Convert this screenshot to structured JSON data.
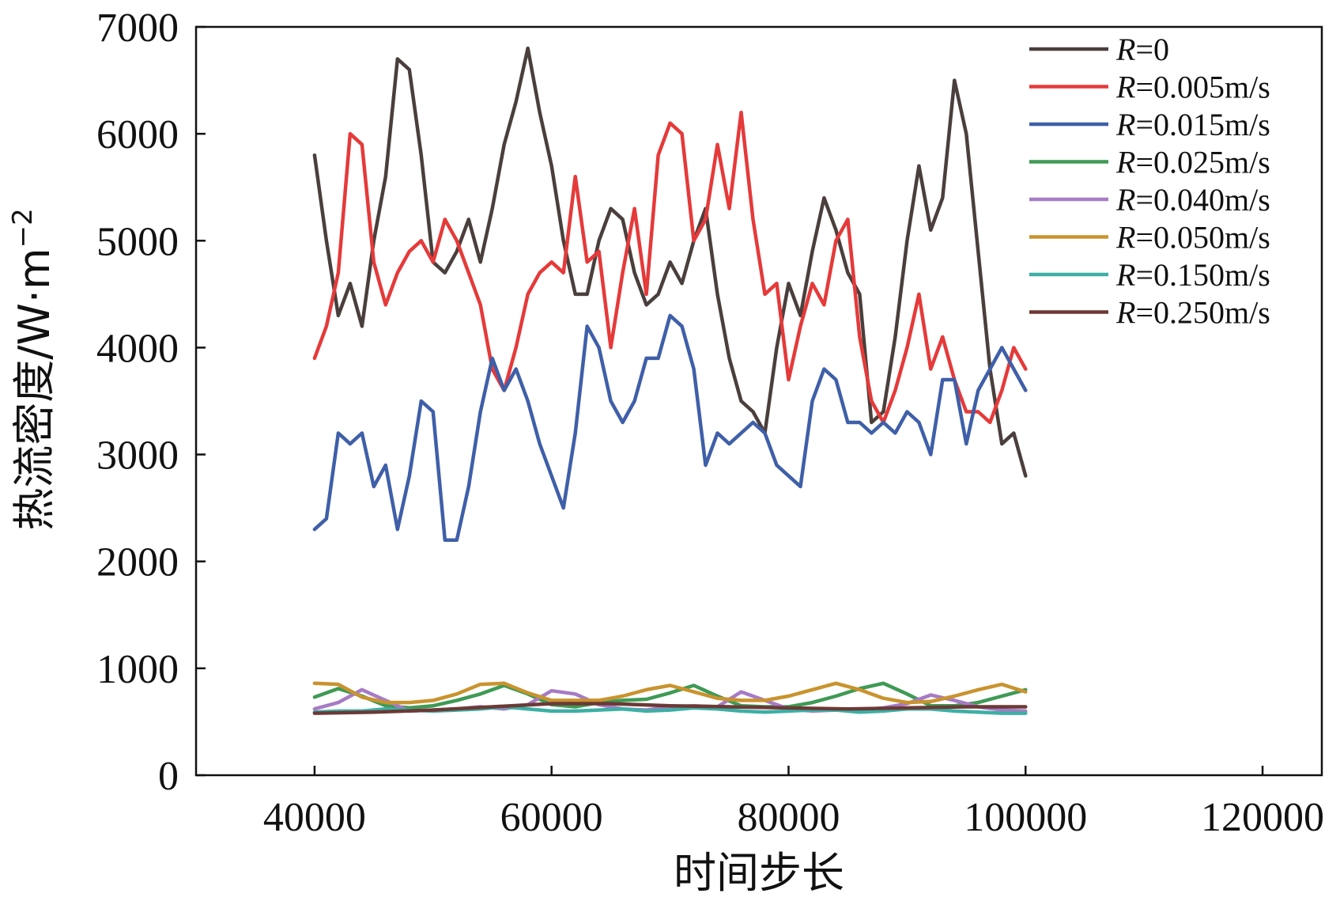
{
  "chart_data": {
    "type": "line",
    "xlabel": "时间步长",
    "ylabel": "热流密度/W·m",
    "ylabel_sup": "−2",
    "xlim": [
      30000,
      125000
    ],
    "ylim": [
      0,
      7000
    ],
    "xticks": [
      40000,
      60000,
      80000,
      100000,
      120000
    ],
    "yticks": [
      0,
      1000,
      2000,
      3000,
      4000,
      5000,
      6000,
      7000
    ],
    "legend_position": "top-right",
    "grid": false,
    "series": [
      {
        "name": "R=0",
        "label_italic": "R",
        "label_rest": "=0",
        "color": "#4a3f3c",
        "x": [
          40000,
          41000,
          42000,
          43000,
          44000,
          45000,
          46000,
          47000,
          48000,
          49000,
          50000,
          51000,
          52000,
          53000,
          54000,
          55000,
          56000,
          57000,
          58000,
          59000,
          60000,
          61000,
          62000,
          63000,
          64000,
          65000,
          66000,
          67000,
          68000,
          69000,
          70000,
          71000,
          72000,
          73000,
          74000,
          75000,
          76000,
          77000,
          78000,
          79000,
          80000,
          81000,
          82000,
          83000,
          84000,
          85000,
          86000,
          87000,
          88000,
          89000,
          90000,
          91000,
          92000,
          93000,
          94000,
          95000,
          96000,
          97000,
          98000,
          99000,
          100000
        ],
        "y": [
          5800,
          5000,
          4300,
          4600,
          4200,
          5000,
          5600,
          6700,
          6600,
          5800,
          4800,
          4700,
          4900,
          5200,
          4800,
          5300,
          5900,
          6300,
          6800,
          6200,
          5700,
          5000,
          4500,
          4500,
          5000,
          5300,
          5200,
          4700,
          4400,
          4500,
          4800,
          4600,
          5000,
          5300,
          4500,
          3900,
          3500,
          3400,
          3200,
          4000,
          4600,
          4300,
          4900,
          5400,
          5100,
          4700,
          4500,
          3300,
          3400,
          4100,
          5000,
          5700,
          5100,
          5400,
          6500,
          6000,
          4900,
          3800,
          3100,
          3200,
          2800
        ]
      },
      {
        "name": "R=0.005m/s",
        "label_italic": "R",
        "label_rest": "=0.005m/s",
        "color": "#e53a3a",
        "x": [
          40000,
          41000,
          42000,
          43000,
          44000,
          45000,
          46000,
          47000,
          48000,
          49000,
          50000,
          51000,
          52000,
          53000,
          54000,
          55000,
          56000,
          57000,
          58000,
          59000,
          60000,
          61000,
          62000,
          63000,
          64000,
          65000,
          66000,
          67000,
          68000,
          69000,
          70000,
          71000,
          72000,
          73000,
          74000,
          75000,
          76000,
          77000,
          78000,
          79000,
          80000,
          81000,
          82000,
          83000,
          84000,
          85000,
          86000,
          87000,
          88000,
          89000,
          90000,
          91000,
          92000,
          93000,
          94000,
          95000,
          96000,
          97000,
          98000,
          99000,
          100000
        ],
        "y": [
          3900,
          4200,
          4700,
          6000,
          5900,
          4800,
          4400,
          4700,
          4900,
          5000,
          4800,
          5200,
          5000,
          4700,
          4400,
          3800,
          3600,
          4000,
          4500,
          4700,
          4800,
          4700,
          5600,
          4800,
          4900,
          4000,
          4700,
          5300,
          4500,
          5800,
          6100,
          6000,
          5000,
          5200,
          5900,
          5300,
          6200,
          5200,
          4500,
          4600,
          3700,
          4200,
          4600,
          4400,
          5000,
          5200,
          4100,
          3500,
          3300,
          3600,
          4000,
          4500,
          3800,
          4100,
          3700,
          3400,
          3400,
          3300,
          3600,
          4000,
          3800
        ]
      },
      {
        "name": "R=0.015m/s",
        "label_italic": "R",
        "label_rest": "=0.015m/s",
        "color": "#3f5fa8",
        "x": [
          40000,
          41000,
          42000,
          43000,
          44000,
          45000,
          46000,
          47000,
          48000,
          49000,
          50000,
          51000,
          52000,
          53000,
          54000,
          55000,
          56000,
          57000,
          58000,
          59000,
          60000,
          61000,
          62000,
          63000,
          64000,
          65000,
          66000,
          67000,
          68000,
          69000,
          70000,
          71000,
          72000,
          73000,
          74000,
          75000,
          76000,
          77000,
          78000,
          79000,
          80000,
          81000,
          82000,
          83000,
          84000,
          85000,
          86000,
          87000,
          88000,
          89000,
          90000,
          91000,
          92000,
          93000,
          94000,
          95000,
          96000,
          97000,
          98000,
          99000,
          100000
        ],
        "y": [
          2300,
          2400,
          3200,
          3100,
          3200,
          2700,
          2900,
          2300,
          2800,
          3500,
          3400,
          2200,
          2200,
          2700,
          3400,
          3900,
          3600,
          3800,
          3500,
          3100,
          2800,
          2500,
          3200,
          4200,
          4000,
          3500,
          3300,
          3500,
          3900,
          3900,
          4300,
          4200,
          3800,
          2900,
          3200,
          3100,
          3200,
          3300,
          3200,
          2900,
          2800,
          2700,
          3500,
          3800,
          3700,
          3300,
          3300,
          3200,
          3300,
          3200,
          3400,
          3300,
          3000,
          3700,
          3700,
          3100,
          3600,
          3800,
          4000,
          3800,
          3600
        ]
      },
      {
        "name": "R=0.025m/s",
        "label_italic": "R",
        "label_rest": "=0.025m/s",
        "color": "#3f9a55",
        "x": [
          40000,
          42000,
          44000,
          46000,
          48000,
          50000,
          52000,
          54000,
          56000,
          58000,
          60000,
          62000,
          64000,
          66000,
          68000,
          70000,
          72000,
          74000,
          76000,
          78000,
          80000,
          82000,
          84000,
          86000,
          88000,
          90000,
          92000,
          94000,
          96000,
          98000,
          100000
        ],
        "y": [
          730,
          810,
          740,
          650,
          630,
          650,
          700,
          760,
          840,
          760,
          660,
          640,
          680,
          700,
          710,
          770,
          840,
          740,
          650,
          640,
          640,
          680,
          740,
          810,
          860,
          760,
          650,
          650,
          680,
          740,
          800
        ]
      },
      {
        "name": "R=0.040m/s",
        "label_italic": "R",
        "label_rest": "=0.040m/s",
        "color": "#a77bc4",
        "x": [
          40000,
          42000,
          44000,
          46000,
          48000,
          50000,
          52000,
          54000,
          56000,
          58000,
          60000,
          62000,
          64000,
          66000,
          68000,
          70000,
          72000,
          74000,
          76000,
          78000,
          80000,
          82000,
          84000,
          86000,
          88000,
          90000,
          92000,
          94000,
          96000,
          98000,
          100000
        ],
        "y": [
          620,
          680,
          800,
          700,
          600,
          610,
          620,
          640,
          620,
          660,
          790,
          760,
          660,
          620,
          610,
          640,
          650,
          640,
          780,
          700,
          620,
          600,
          610,
          610,
          630,
          670,
          750,
          700,
          640,
          610,
          600
        ]
      },
      {
        "name": "R=0.050m/s",
        "label_italic": "R",
        "label_rest": "=0.050m/s",
        "color": "#c9932e",
        "x": [
          40000,
          42000,
          44000,
          46000,
          48000,
          50000,
          52000,
          54000,
          56000,
          58000,
          60000,
          62000,
          64000,
          66000,
          68000,
          70000,
          72000,
          74000,
          76000,
          78000,
          80000,
          82000,
          84000,
          86000,
          88000,
          90000,
          92000,
          94000,
          96000,
          98000,
          100000
        ],
        "y": [
          860,
          850,
          730,
          680,
          680,
          700,
          760,
          850,
          860,
          770,
          700,
          700,
          700,
          740,
          800,
          840,
          780,
          720,
          700,
          700,
          740,
          800,
          860,
          800,
          720,
          680,
          690,
          740,
          800,
          850,
          780
        ]
      },
      {
        "name": "R=0.150m/s",
        "label_italic": "R",
        "label_rest": "=0.150m/s",
        "color": "#3dafa5",
        "x": [
          40000,
          42000,
          44000,
          46000,
          48000,
          50000,
          52000,
          54000,
          56000,
          58000,
          60000,
          62000,
          64000,
          66000,
          68000,
          70000,
          72000,
          74000,
          76000,
          78000,
          80000,
          82000,
          84000,
          86000,
          88000,
          90000,
          92000,
          94000,
          96000,
          98000,
          100000
        ],
        "y": [
          590,
          600,
          600,
          620,
          610,
          600,
          610,
          620,
          640,
          620,
          600,
          600,
          610,
          620,
          600,
          610,
          630,
          620,
          600,
          590,
          600,
          610,
          610,
          590,
          600,
          620,
          620,
          600,
          590,
          580,
          580
        ]
      },
      {
        "name": "R=0.250m/s",
        "label_italic": "R",
        "label_rest": "=0.250m/s",
        "color": "#6b3a36",
        "x": [
          40000,
          45000,
          50000,
          55000,
          60000,
          65000,
          70000,
          75000,
          80000,
          85000,
          90000,
          95000,
          100000
        ],
        "y": [
          580,
          590,
          610,
          640,
          670,
          670,
          650,
          640,
          630,
          620,
          630,
          640,
          640
        ]
      }
    ]
  }
}
